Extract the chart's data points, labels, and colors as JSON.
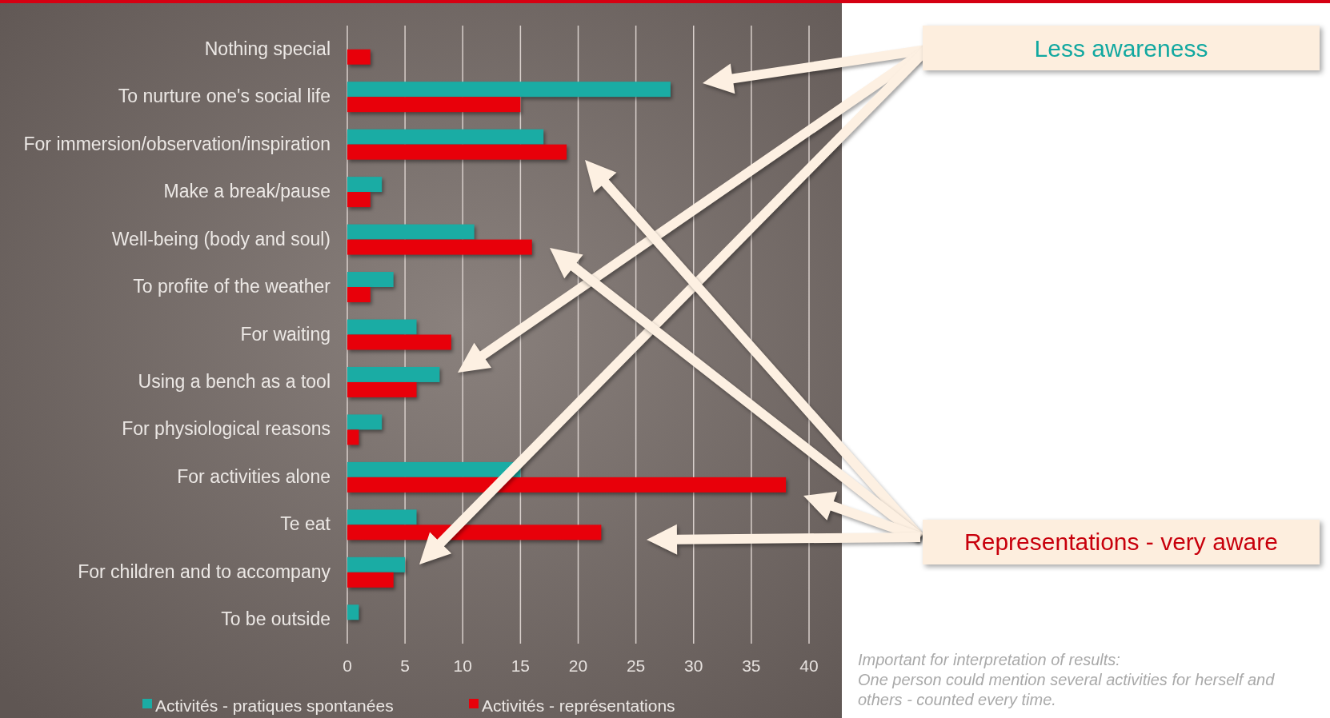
{
  "chart_data": {
    "type": "bar",
    "orientation": "horizontal",
    "categories": [
      "Nothing special",
      "To nurture one's social life",
      "For immersion/observation/inspiration",
      "Make a break/pause",
      "Well-being (body and soul)",
      "To profite of the weather",
      "For waiting",
      "Using a bench as a tool",
      "For physiological reasons",
      "For activities alone",
      "Te eat",
      "For children and to accompany",
      "To be outside"
    ],
    "series": [
      {
        "name": "Activités - pratiques spontanées",
        "color": "#1aaca4",
        "values": [
          null,
          28,
          17,
          3,
          11,
          4,
          6,
          8,
          3,
          15,
          6,
          5,
          1
        ]
      },
      {
        "name": "Activités - représentations",
        "color": "#e8000a",
        "values": [
          2,
          15,
          19,
          2,
          16,
          2,
          9,
          6,
          1,
          38,
          22,
          4,
          null
        ]
      }
    ],
    "xlim": [
      0,
      40
    ],
    "xticks": [
      0,
      5,
      10,
      15,
      20,
      25,
      30,
      35,
      40
    ],
    "grid": "x",
    "legend": "bottom",
    "annotations": [
      "Less awareness",
      "Representations - very aware",
      "Important for interpretation of results:",
      "One person could mention several activities for herself and others - counted every time."
    ]
  }
}
